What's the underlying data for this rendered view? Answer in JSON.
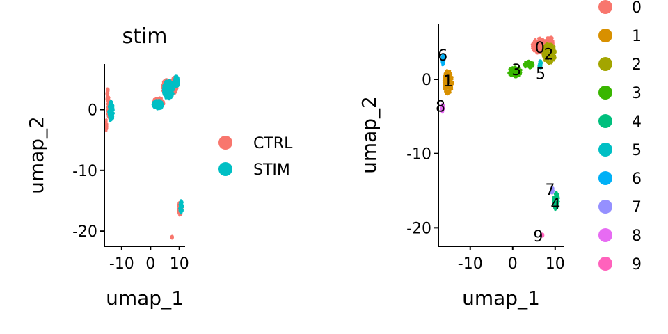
{
  "chart_data": [
    {
      "type": "scatter",
      "title": "stim",
      "xlabel": "umap_1",
      "ylabel": "umap_2",
      "xlim": [
        -16,
        12
      ],
      "ylim": [
        -22.5,
        7.5
      ],
      "xticks": [
        {
          "value": -10,
          "label": "-10"
        },
        {
          "value": 0,
          "label": "0"
        },
        {
          "value": 10,
          "label": "10"
        }
      ],
      "yticks": [
        {
          "value": 0,
          "label": "0"
        },
        {
          "value": -10,
          "label": "-10"
        },
        {
          "value": -20,
          "label": "-20"
        }
      ],
      "legend": {
        "position": "right",
        "items": [
          {
            "label": "CTRL",
            "color": "#F8766D"
          },
          {
            "label": "STIM",
            "color": "#00BFC4"
          }
        ]
      },
      "groups": [
        {
          "name": "CTRL",
          "color": "#F8766D",
          "clusters": [
            {
              "cx": -14.2,
              "cy": 0.0,
              "rx": 0.8,
              "ry": 1.6
            },
            {
              "cx": -14.8,
              "cy": 2.3,
              "rx": 0.5,
              "ry": 1.2
            },
            {
              "cx": -15.3,
              "cy": -2.5,
              "rx": 0.3,
              "ry": 1.0
            },
            {
              "cx": 5.6,
              "cy": 3.6,
              "rx": 1.6,
              "ry": 1.4
            },
            {
              "cx": 2.8,
              "cy": 1.2,
              "rx": 2.0,
              "ry": 0.8
            },
            {
              "cx": 8.2,
              "cy": 4.0,
              "rx": 1.2,
              "ry": 1.4
            },
            {
              "cx": 10.3,
              "cy": -16.3,
              "rx": 0.7,
              "ry": 1.2
            },
            {
              "cx": 7.5,
              "cy": -21.0,
              "rx": 0.2,
              "ry": 0.2
            }
          ]
        },
        {
          "name": "STIM",
          "color": "#00BFC4",
          "clusters": [
            {
              "cx": -13.7,
              "cy": -0.3,
              "rx": 0.9,
              "ry": 1.7
            },
            {
              "cx": 6.2,
              "cy": 3.3,
              "rx": 1.9,
              "ry": 1.6
            },
            {
              "cx": 9.0,
              "cy": 4.6,
              "rx": 0.9,
              "ry": 1.0
            },
            {
              "cx": 2.5,
              "cy": 0.8,
              "rx": 1.8,
              "ry": 0.8
            },
            {
              "cx": 10.6,
              "cy": -16.0,
              "rx": 0.6,
              "ry": 1.1
            }
          ]
        }
      ]
    },
    {
      "type": "scatter",
      "title": "",
      "xlabel": "umap_1",
      "ylabel": "umap_2",
      "xlim": [
        -17.5,
        12
      ],
      "ylim": [
        -22.5,
        7.5
      ],
      "xticks": [
        {
          "value": -10,
          "label": "-10"
        },
        {
          "value": 0,
          "label": "0"
        },
        {
          "value": 10,
          "label": "10"
        }
      ],
      "yticks": [
        {
          "value": 0,
          "label": "0"
        },
        {
          "value": -10,
          "label": "-10"
        },
        {
          "value": -20,
          "label": "-20"
        }
      ],
      "legend": {
        "position": "right",
        "items": [
          {
            "label": "0",
            "color": "#F8766D"
          },
          {
            "label": "1",
            "color": "#D89000"
          },
          {
            "label": "2",
            "color": "#A3A500"
          },
          {
            "label": "3",
            "color": "#39B600"
          },
          {
            "label": "4",
            "color": "#00BF7D"
          },
          {
            "label": "5",
            "color": "#00BFC4"
          },
          {
            "label": "6",
            "color": "#00B0F6"
          },
          {
            "label": "7",
            "color": "#9590FF"
          },
          {
            "label": "8",
            "color": "#E76BF3"
          },
          {
            "label": "9",
            "color": "#FF62BC"
          }
        ]
      },
      "groups": [
        {
          "name": "0",
          "color": "#F8766D",
          "label": "0",
          "lx": 6.4,
          "ly": 4.3,
          "clusters": [
            {
              "cx": 6.5,
              "cy": 4.5,
              "rx": 2.0,
              "ry": 1.1
            },
            {
              "cx": 8.7,
              "cy": 5.0,
              "rx": 1.0,
              "ry": 0.8
            }
          ]
        },
        {
          "name": "1",
          "color": "#D89000",
          "label": "1",
          "lx": -15.2,
          "ly": -0.2,
          "clusters": [
            {
              "cx": -15.2,
              "cy": -0.4,
              "rx": 1.1,
              "ry": 1.7
            }
          ]
        },
        {
          "name": "2",
          "color": "#A3A500",
          "label": "2",
          "lx": 8.5,
          "ly": 3.4,
          "clusters": [
            {
              "cx": 8.6,
              "cy": 3.5,
              "rx": 1.6,
              "ry": 1.4
            }
          ]
        },
        {
          "name": "3",
          "color": "#39B600",
          "label": "3",
          "lx": 0.9,
          "ly": 1.3,
          "clusters": [
            {
              "cx": 0.6,
              "cy": 1.0,
              "rx": 1.6,
              "ry": 0.7
            },
            {
              "cx": 3.8,
              "cy": 2.0,
              "rx": 1.2,
              "ry": 0.5
            }
          ]
        },
        {
          "name": "4",
          "color": "#00BF7D",
          "label": "4",
          "lx": 10.1,
          "ly": -16.8,
          "clusters": [
            {
              "cx": 10.2,
              "cy": -16.4,
              "rx": 0.7,
              "ry": 1.2
            }
          ]
        },
        {
          "name": "5",
          "color": "#00BFC4",
          "label": "5",
          "lx": 6.6,
          "ly": 0.8,
          "clusters": [
            {
              "cx": 6.5,
              "cy": 2.0,
              "rx": 0.4,
              "ry": 0.6
            }
          ]
        },
        {
          "name": "6",
          "color": "#00B0F6",
          "label": "6",
          "lx": -16.5,
          "ly": 3.3,
          "clusters": [
            {
              "cx": -16.4,
              "cy": 2.6,
              "rx": 0.3,
              "ry": 0.8
            }
          ]
        },
        {
          "name": "7",
          "color": "#9590FF",
          "label": "7",
          "lx": 8.8,
          "ly": -14.8,
          "clusters": [
            {
              "cx": 9.3,
              "cy": -15.0,
              "rx": 0.3,
              "ry": 0.5
            }
          ]
        },
        {
          "name": "8",
          "color": "#E76BF3",
          "label": "8",
          "lx": -17.0,
          "ly": -3.6,
          "clusters": [
            {
              "cx": -16.5,
              "cy": -3.9,
              "rx": 0.3,
              "ry": 0.6
            }
          ]
        },
        {
          "name": "9",
          "color": "#FF62BC",
          "label": "9",
          "lx": 6.0,
          "ly": -21.1,
          "clusters": [
            {
              "cx": 7.0,
              "cy": -21.0,
              "rx": 0.2,
              "ry": 0.2
            }
          ]
        }
      ]
    }
  ]
}
